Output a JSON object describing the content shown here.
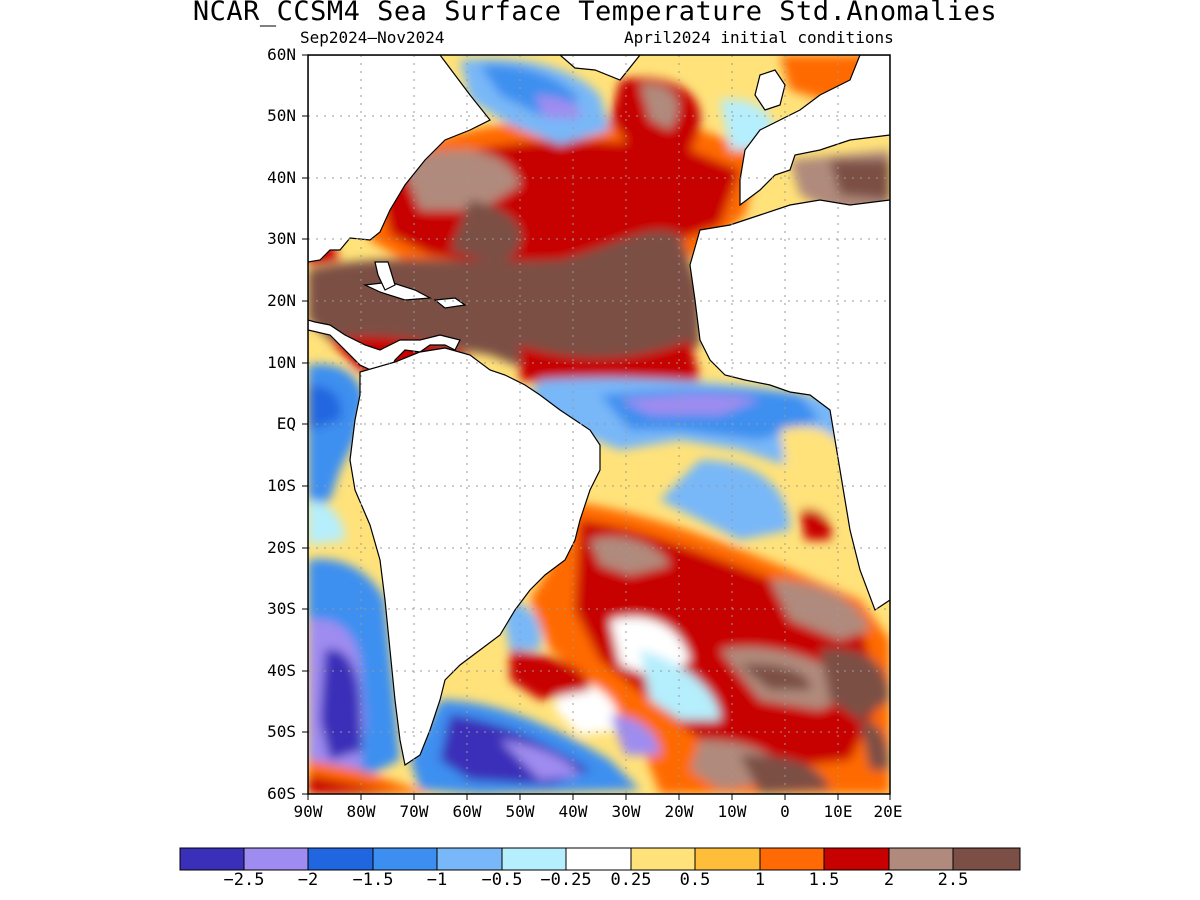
{
  "title": "NCAR_CCSM4 Sea Surface Temperature Std.Anomalies",
  "period": "Sep2024–Nov2024",
  "init": "April2024 initial conditions",
  "lat_labels": [
    "60N",
    "50N",
    "40N",
    "30N",
    "20N",
    "10N",
    "EQ",
    "10S",
    "20S",
    "30S",
    "40S",
    "50S",
    "60S"
  ],
  "lon_labels": [
    "90W",
    "80W",
    "70W",
    "60W",
    "50W",
    "40W",
    "30W",
    "20W",
    "10W",
    "0",
    "10E",
    "20E"
  ],
  "colorbar": {
    "labels": [
      "−2.5",
      "−2",
      "−1.5",
      "−1",
      "−0.5",
      "−0.25",
      "0.25",
      "0.5",
      "1",
      "1.5",
      "2",
      "2.5"
    ],
    "colors": [
      "#3a2fb8",
      "#9f8cf0",
      "#2066e0",
      "#3c8ff0",
      "#78b7f8",
      "#b5eefc",
      "#ffffff",
      "#ffe27a",
      "#ffbe3a",
      "#ff6a05",
      "#c70000",
      "#b08a7c",
      "#7b4f45"
    ]
  },
  "colors": {
    "land": "#ffffff",
    "coast": "#000000",
    "grid": "#9a9a9a"
  },
  "map": {
    "lon_range": [
      -90,
      20
    ],
    "lat_range": [
      -60,
      60
    ],
    "grid_spacing_deg": 10,
    "projection": "equirectangular"
  }
}
